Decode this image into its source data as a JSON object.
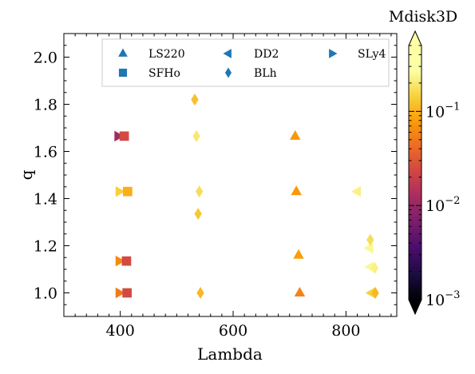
{
  "chart_data": {
    "type": "scatter",
    "title": "",
    "xlabel": "Lambda",
    "ylabel": "q",
    "xlim": [
      300,
      890
    ],
    "ylim": [
      0.9,
      2.1
    ],
    "x_ticks": [
      400,
      600,
      800
    ],
    "y_ticks": [
      1.0,
      1.2,
      1.4,
      1.6,
      1.8,
      2.0
    ],
    "x_tick_labels": [
      "400",
      "600",
      "800"
    ],
    "y_tick_labels": [
      "1.0",
      "1.2",
      "1.4",
      "1.6",
      "1.8",
      "2.0"
    ],
    "legend": {
      "placement": "top-right",
      "columns": 3,
      "marker_color": "#1f77b4"
    },
    "colorbar": {
      "label": "Mdisk3D",
      "scale": "log",
      "range": [
        0.001,
        0.5
      ],
      "ticks": [
        0.001,
        0.01,
        0.1
      ],
      "tick_labels": [
        "10",
        "10",
        "10"
      ],
      "tick_exponents": [
        "−3",
        "−2",
        "−1"
      ],
      "colormap": "inferno",
      "extend": "both"
    },
    "series": [
      {
        "name": "LS220",
        "marker": "triangle-up",
        "points": [
          {
            "x": 710,
            "y": 1.665,
            "c": 0.12
          },
          {
            "x": 712,
            "y": 1.43,
            "c": 0.12
          },
          {
            "x": 716,
            "y": 1.16,
            "c": 0.13
          },
          {
            "x": 718,
            "y": 1.0,
            "c": 0.09
          }
        ]
      },
      {
        "name": "DD2",
        "marker": "triangle-left",
        "points": [
          {
            "x": 820,
            "y": 1.43,
            "c": 0.4
          },
          {
            "x": 842,
            "y": 1.19,
            "c": 0.45
          },
          {
            "x": 843,
            "y": 1.11,
            "c": 0.45
          },
          {
            "x": 845,
            "y": 1.0,
            "c": 0.25
          }
        ]
      },
      {
        "name": "SLy4",
        "marker": "triangle-right",
        "points": [
          {
            "x": 396,
            "y": 1.665,
            "c": 0.015
          },
          {
            "x": 398,
            "y": 1.43,
            "c": 0.25
          },
          {
            "x": 398,
            "y": 1.135,
            "c": 0.1
          },
          {
            "x": 398,
            "y": 1.0,
            "c": 0.08
          }
        ]
      },
      {
        "name": "SFHo",
        "marker": "square",
        "points": [
          {
            "x": 407,
            "y": 1.665,
            "c": 0.035
          },
          {
            "x": 413,
            "y": 1.43,
            "c": 0.16
          },
          {
            "x": 411,
            "y": 1.135,
            "c": 0.035
          },
          {
            "x": 412,
            "y": 1.0,
            "c": 0.035
          }
        ]
      },
      {
        "name": "BLh",
        "marker": "diamond",
        "points": [
          {
            "x": 532,
            "y": 1.82,
            "c": 0.2
          },
          {
            "x": 535,
            "y": 1.665,
            "c": 0.35
          },
          {
            "x": 540,
            "y": 1.43,
            "c": 0.3
          },
          {
            "x": 538,
            "y": 1.335,
            "c": 0.22
          },
          {
            "x": 542,
            "y": 1.0,
            "c": 0.18
          },
          {
            "x": 843,
            "y": 1.225,
            "c": 0.3
          },
          {
            "x": 851,
            "y": 1.105,
            "c": 0.4
          },
          {
            "x": 852,
            "y": 1.0,
            "c": 0.18
          }
        ]
      }
    ]
  }
}
